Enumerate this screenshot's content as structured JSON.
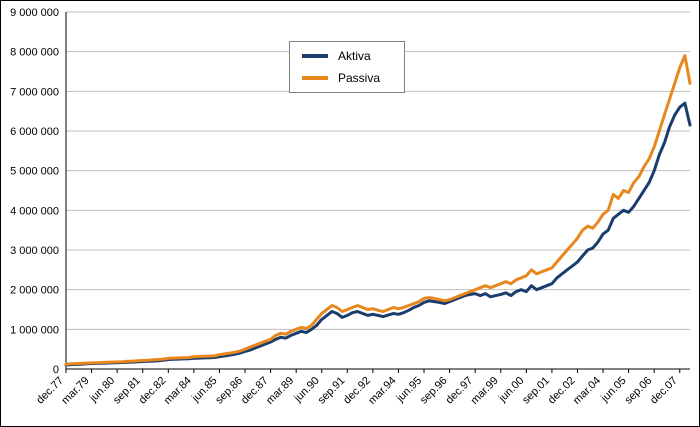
{
  "chart_data": {
    "type": "line",
    "title": "",
    "xlabel": "",
    "ylabel": "",
    "frequency": "quarterly",
    "x_start": "dec.77",
    "x_end": "jun.08",
    "grid": true,
    "gridline_color": "#bfbfbf",
    "legend_position": "top-center",
    "ylim": [
      0,
      9000000
    ],
    "y_gridline_step": 1000000,
    "y_tick_labels": [
      "0",
      "1 000 000",
      "2 000 000",
      "3 000 000",
      "4 000 000",
      "5 000 000",
      "6 000 000",
      "7 000 000",
      "8 000 000",
      "9 000 000"
    ],
    "x_tick_labels": [
      "dec.77",
      "mar.79",
      "jun.80",
      "sep.81",
      "dec.82",
      "mar.84",
      "jun.85",
      "sep.86",
      "dec.87",
      "mar.89",
      "jun.90",
      "sep.91",
      "dec.92",
      "mar.94",
      "jun.95",
      "sep.96",
      "dec.97",
      "mar.99",
      "jun.00",
      "sep.01",
      "dec.02",
      "mar.04",
      "jun.05",
      "sep.06",
      "dec.07"
    ],
    "x_tick_every_n_points": 5,
    "series": [
      {
        "name": "Aktiva",
        "color": "#1b3d6d",
        "values": [
          100000,
          110000,
          115000,
          120000,
          130000,
          135000,
          140000,
          145000,
          150000,
          155000,
          160000,
          165000,
          170000,
          175000,
          185000,
          190000,
          195000,
          200000,
          210000,
          220000,
          240000,
          245000,
          250000,
          255000,
          260000,
          270000,
          275000,
          280000,
          285000,
          290000,
          310000,
          330000,
          350000,
          370000,
          400000,
          440000,
          480000,
          530000,
          580000,
          630000,
          680000,
          750000,
          800000,
          780000,
          850000,
          900000,
          950000,
          920000,
          1000000,
          1100000,
          1250000,
          1350000,
          1450000,
          1400000,
          1300000,
          1350000,
          1420000,
          1450000,
          1400000,
          1350000,
          1380000,
          1350000,
          1320000,
          1360000,
          1400000,
          1380000,
          1420000,
          1480000,
          1550000,
          1600000,
          1680000,
          1720000,
          1700000,
          1680000,
          1650000,
          1700000,
          1750000,
          1800000,
          1850000,
          1880000,
          1900000,
          1850000,
          1900000,
          1820000,
          1850000,
          1880000,
          1920000,
          1850000,
          1950000,
          2000000,
          1950000,
          2100000,
          2000000,
          2050000,
          2100000,
          2150000,
          2300000,
          2400000,
          2500000,
          2600000,
          2700000,
          2850000,
          3000000,
          3050000,
          3200000,
          3400000,
          3500000,
          3800000,
          3900000,
          4000000,
          3950000,
          4100000,
          4300000,
          4500000,
          4700000,
          5000000,
          5400000,
          5700000,
          6100000,
          6400000,
          6600000,
          6700000,
          6150000
        ]
      },
      {
        "name": "Passiva",
        "color": "#e8871e",
        "values": [
          120000,
          130000,
          135000,
          140000,
          150000,
          155000,
          160000,
          165000,
          170000,
          175000,
          180000,
          185000,
          195000,
          200000,
          210000,
          215000,
          220000,
          230000,
          240000,
          250000,
          270000,
          275000,
          280000,
          285000,
          290000,
          310000,
          315000,
          320000,
          325000,
          330000,
          360000,
          380000,
          400000,
          420000,
          450000,
          500000,
          550000,
          600000,
          650000,
          700000,
          750000,
          850000,
          900000,
          880000,
          950000,
          1000000,
          1050000,
          1020000,
          1100000,
          1250000,
          1400000,
          1500000,
          1600000,
          1550000,
          1450000,
          1500000,
          1550000,
          1600000,
          1550000,
          1500000,
          1520000,
          1480000,
          1450000,
          1500000,
          1550000,
          1520000,
          1550000,
          1600000,
          1650000,
          1700000,
          1780000,
          1800000,
          1780000,
          1750000,
          1720000,
          1750000,
          1800000,
          1850000,
          1900000,
          1950000,
          2000000,
          2050000,
          2100000,
          2050000,
          2100000,
          2150000,
          2200000,
          2150000,
          2250000,
          2300000,
          2350000,
          2500000,
          2400000,
          2450000,
          2500000,
          2550000,
          2700000,
          2850000,
          3000000,
          3150000,
          3300000,
          3500000,
          3600000,
          3550000,
          3700000,
          3900000,
          4000000,
          4400000,
          4300000,
          4500000,
          4450000,
          4700000,
          4850000,
          5100000,
          5300000,
          5600000,
          6000000,
          6400000,
          6800000,
          7200000,
          7600000,
          7900000,
          7200000
        ]
      }
    ]
  }
}
